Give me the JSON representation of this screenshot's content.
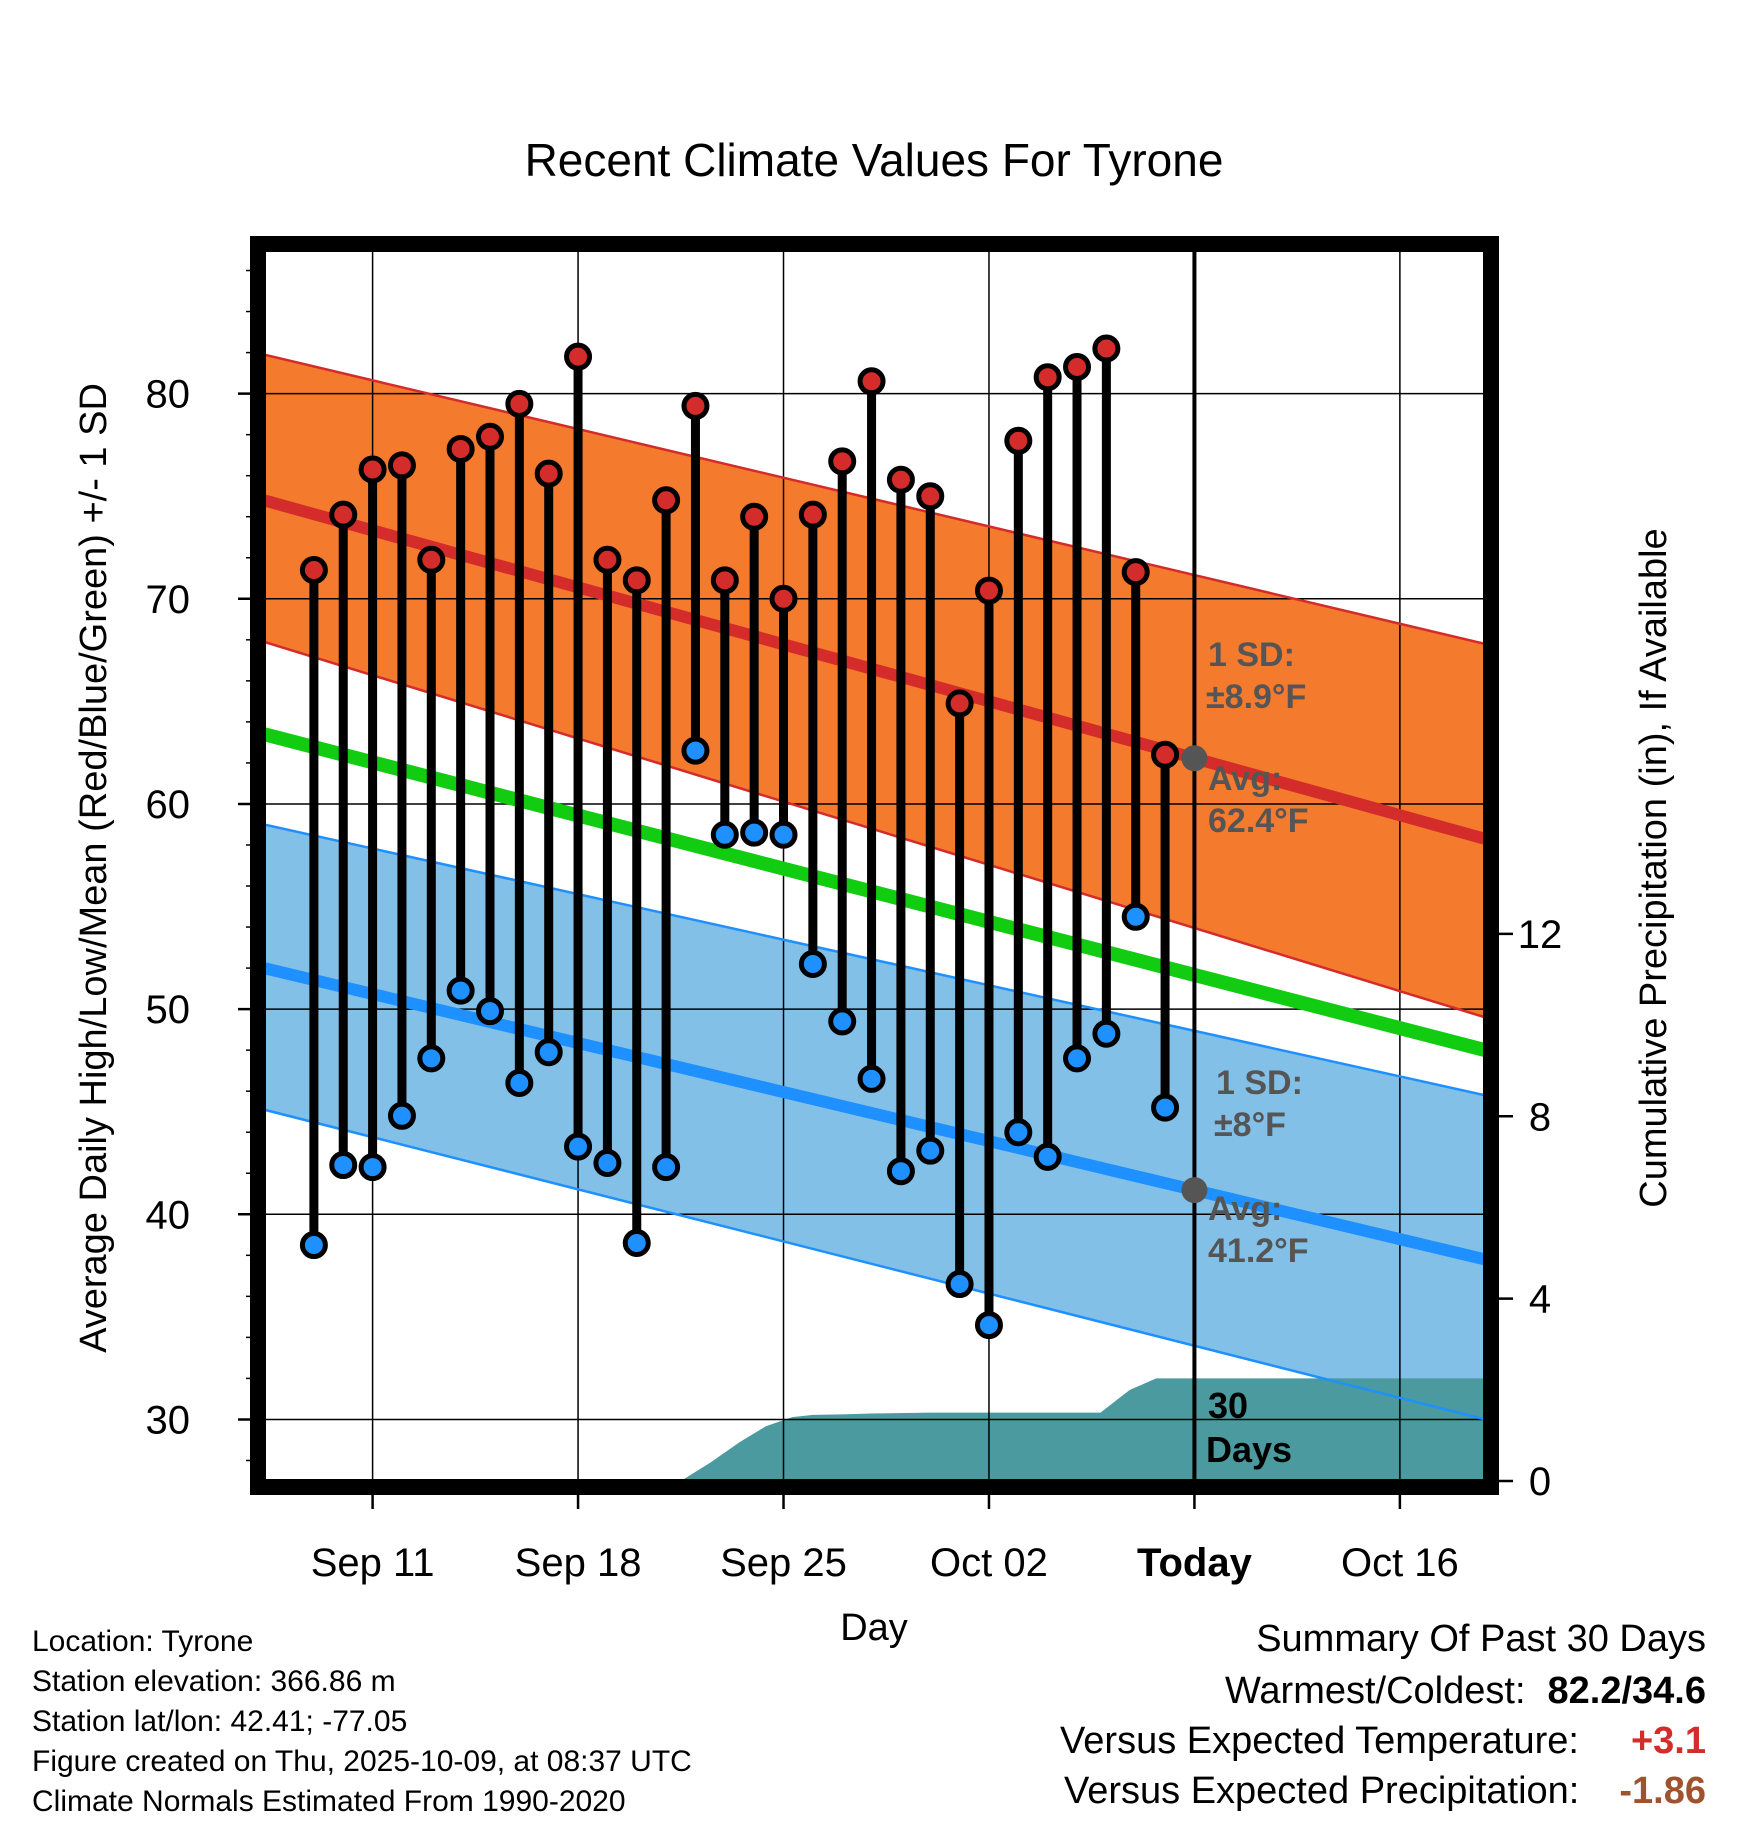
{
  "chart_data": {
    "type": "line",
    "title": "Recent Climate Values For Tyrone",
    "xlabel": "Day",
    "ylabel": "Average Daily High/Low/Mean (Red/Blue/Green) +/- 1 SD",
    "y2label": "Cumulative Precipitation (in), If Available",
    "ylim": [
      27,
      87
    ],
    "y2lim": [
      0,
      27
    ],
    "xlim": [
      -0.7,
      40.9
    ],
    "x_ticks": [
      {
        "x": 3,
        "label": "Sep 11"
      },
      {
        "x": 10,
        "label": "Sep 18"
      },
      {
        "x": 17,
        "label": "Sep 25"
      },
      {
        "x": 24,
        "label": "Oct 02"
      },
      {
        "x": 31,
        "label": "Today"
      },
      {
        "x": 38,
        "label": "Oct 16"
      }
    ],
    "y_ticks": [
      30,
      40,
      50,
      60,
      70,
      80
    ],
    "y2_ticks": [
      0,
      4,
      8,
      12
    ],
    "today_x": 31,
    "normals": {
      "x": [
        -0.7,
        40.9
      ],
      "high_avg": [
        74.8,
        58.3
      ],
      "high_upper": [
        81.9,
        67.8
      ],
      "high_lower": [
        67.9,
        49.6
      ],
      "low_avg": [
        52.0,
        37.8
      ],
      "low_upper": [
        59.0,
        45.8
      ],
      "low_lower": [
        45.1,
        30.0
      ],
      "mean": [
        63.4,
        48.0
      ]
    },
    "series": [
      {
        "name": "Daily High",
        "color": "#d42b2b",
        "values": [
          71.4,
          74.1,
          76.3,
          76.5,
          71.9,
          77.3,
          77.9,
          79.5,
          76.1,
          81.8,
          71.9,
          70.9,
          74.8,
          79.4,
          70.9,
          74.0,
          70.0,
          74.1,
          76.7,
          80.6,
          75.8,
          75.0,
          64.9,
          70.4,
          77.7,
          80.8,
          81.3,
          82.2,
          71.3,
          62.4
        ]
      },
      {
        "name": "Daily Low",
        "color": "#1e90ff",
        "values": [
          38.5,
          42.4,
          42.3,
          44.8,
          47.6,
          50.9,
          49.9,
          46.4,
          47.9,
          43.3,
          42.5,
          38.6,
          42.3,
          62.6,
          58.5,
          58.6,
          58.5,
          52.2,
          49.4,
          46.6,
          42.1,
          43.1,
          36.6,
          34.6,
          44.0,
          42.8,
          47.6,
          48.8,
          54.5,
          45.2
        ]
      },
      {
        "name": "Cumulative Precipitation",
        "color": "#4a9aa0",
        "y2": true,
        "x": [
          13.5,
          14.5,
          15.5,
          16.4,
          17.3,
          18,
          19,
          20,
          22,
          24,
          26,
          27.8,
          28.8,
          29.7,
          30.5,
          40.9
        ],
        "values": [
          0,
          0.4,
          0.85,
          1.2,
          1.4,
          1.45,
          1.46,
          1.48,
          1.5,
          1.5,
          1.5,
          1.5,
          2.0,
          2.25,
          2.25,
          2.25
        ]
      }
    ],
    "annotations": {
      "high_sd_label": "1 SD:",
      "high_sd_value": "±8.9°F",
      "high_avg_label": "Avg:",
      "high_avg_value": "62.4°F",
      "low_sd_label": "1 SD:",
      "low_sd_value": "±8°F",
      "low_avg_label": "Avg:",
      "low_avg_value": "41.2°F",
      "precip_days_1": "30",
      "precip_days_2": "Days"
    }
  },
  "info": {
    "location": "Location: Tyrone",
    "elevation": "Station elevation: 366.86 m",
    "latlon": "Station lat/lon: 42.41; -77.05",
    "created": "Figure created on Thu, 2025-10-09, at 08:37 UTC",
    "normals": "Climate Normals Estimated From 1990-2020"
  },
  "summary": {
    "title": "Summary Of Past 30 Days",
    "warm_cold_label": "Warmest/Coldest:",
    "warm_cold_value": "82.2/34.6",
    "temp_label": "Versus Expected Temperature:",
    "temp_value": "+3.1",
    "temp_color": "#d42b2b",
    "precip_label": "Versus Expected Precipitation:",
    "precip_value": "-1.86",
    "precip_color": "#a0522d"
  },
  "colors": {
    "high_band": "#f47a2e",
    "high_edge": "#d42b2b",
    "low_band": "#82c0e8",
    "low_edge": "#1e90ff",
    "mean_line": "#11cc11",
    "precip": "#4a9aa0",
    "today_dot": "#555555"
  }
}
